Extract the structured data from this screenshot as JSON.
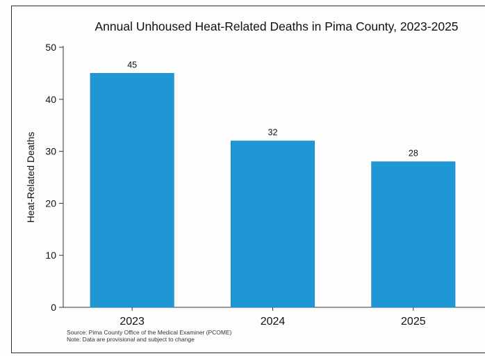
{
  "chart_data": {
    "type": "bar",
    "title": "Annual Unhoused Heat-Related Deaths in Pima County, 2023-2025",
    "xlabel": "",
    "ylabel": "Heat-Related Deaths",
    "categories": [
      "2023",
      "2024",
      "2025"
    ],
    "values": [
      45,
      32,
      28
    ],
    "data_labels": [
      "45",
      "32",
      "28"
    ],
    "ylim": [
      0,
      50
    ],
    "yticks": [
      0,
      10,
      20,
      30,
      40,
      50
    ],
    "grid": false,
    "legend": "none",
    "bar_color": "#1f97d4"
  },
  "notes": {
    "source": "Source: Pima County Office of the Medical Examiner (PCOME)",
    "note": "Note: Data are provisional and subject to change"
  }
}
